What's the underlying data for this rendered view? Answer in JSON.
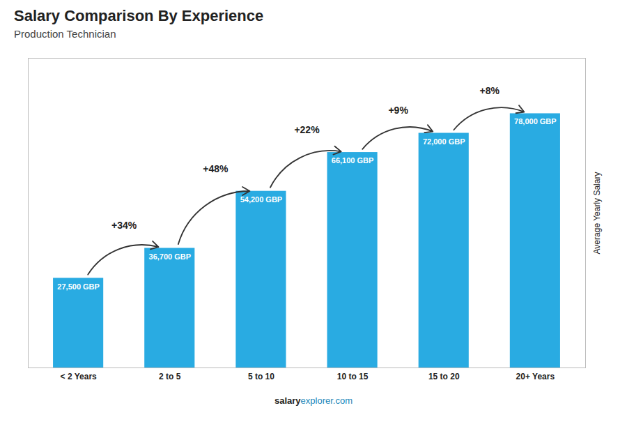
{
  "chart_data": {
    "type": "bar",
    "title": "Salary Comparison By Experience",
    "subtitle": "Production Technician",
    "categories": [
      "< 2 Years",
      "2 to 5",
      "5 to 10",
      "10 to 15",
      "15 to 20",
      "20+ Years"
    ],
    "values": [
      27500,
      36700,
      54200,
      66100,
      72000,
      78000
    ],
    "value_labels": [
      "27,500 GBP",
      "36,700 GBP",
      "54,200 GBP",
      "66,100 GBP",
      "72,000 GBP",
      "78,000 GBP"
    ],
    "data_labels": true,
    "color": "#29ABE2",
    "ylim": [
      0,
      95000
    ],
    "ylabel": "Average Yearly Salary",
    "tick_labels": "x",
    "annotations": [
      "+34%",
      "+48%",
      "+22%",
      "+9%",
      "+8%"
    ],
    "footer": [
      "salary",
      "explorer.com"
    ]
  }
}
